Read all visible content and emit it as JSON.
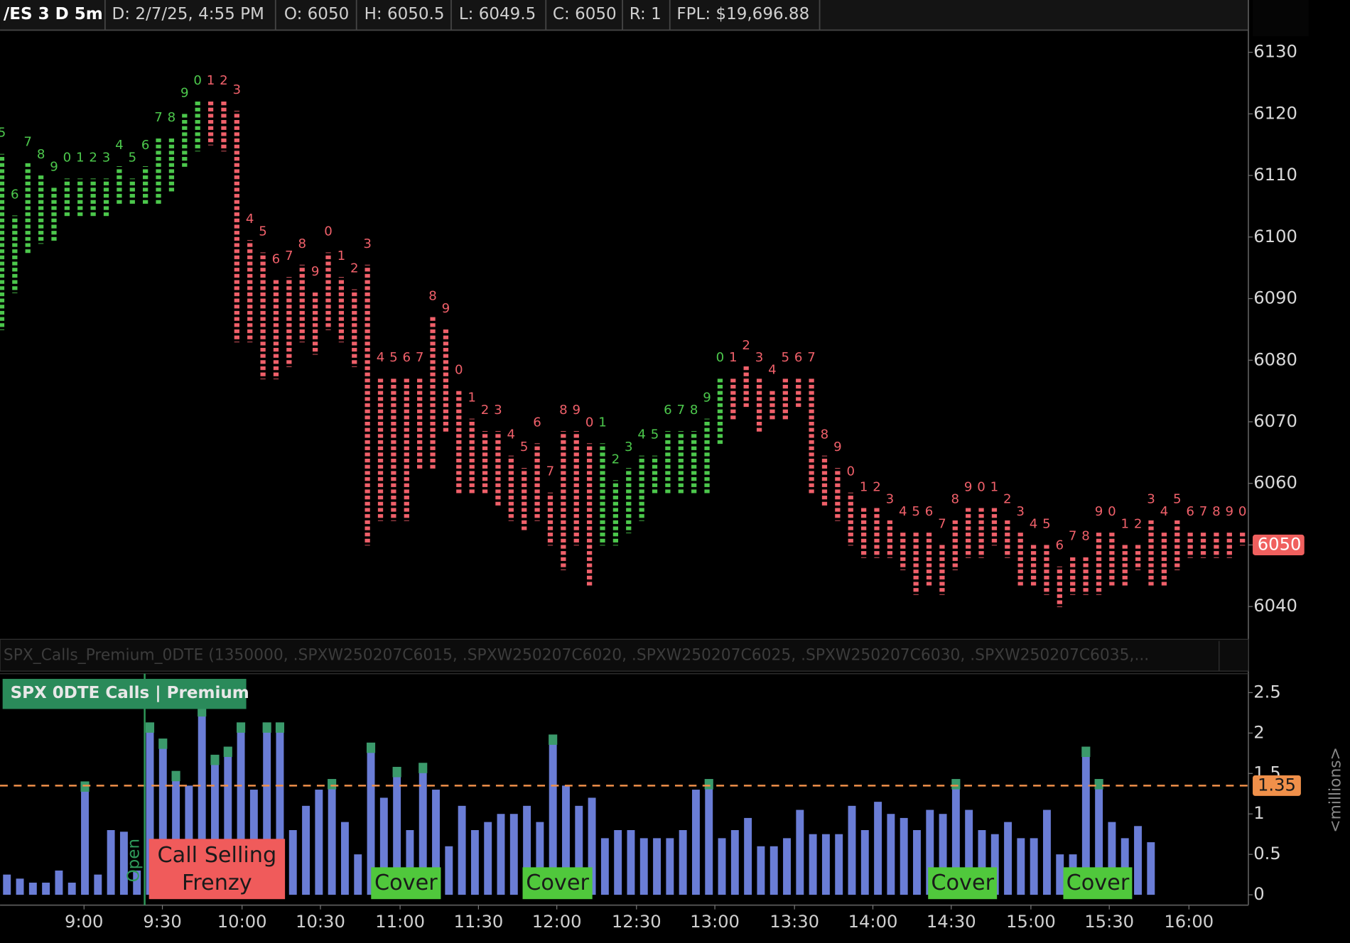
{
  "header": {
    "items": [
      "/ES 3 D 5m",
      "D: 2/7/25, 4:55 PM",
      "O: 6050",
      "H: 6050.5",
      "L: 6049.5",
      "C: 6050",
      "R: 1",
      "FPL: $19,696.88"
    ]
  },
  "chart_data": [
    {
      "type": "tpo",
      "labels": [
        "5",
        "6",
        "7",
        "8",
        "9",
        "0",
        "1",
        "2",
        "3",
        "4",
        "5",
        "6",
        "7",
        "8",
        "9",
        "0",
        "1",
        "2",
        "3",
        "4",
        "5",
        "6",
        "7",
        "8",
        "9",
        "0",
        "1",
        "2",
        "3",
        "4",
        "5",
        "6",
        "7",
        "8",
        "9",
        "0",
        "1",
        "2",
        "3",
        "4",
        "5",
        "6",
        "7",
        "8",
        "9",
        "0",
        "1",
        "2",
        "3",
        "4",
        "5",
        "6",
        "7",
        "8",
        "9",
        "0",
        "1",
        "2",
        "3",
        "4",
        "5",
        "6",
        "7",
        "8",
        "9",
        "0",
        "1",
        "2",
        "3",
        "4",
        "5",
        "6",
        "7",
        "8",
        "9",
        "0",
        "1",
        "2",
        "3",
        "4",
        "5",
        "6",
        "7",
        "8",
        "9",
        "0",
        "1",
        "2",
        "3",
        "4",
        "5",
        "6",
        "7",
        "8",
        "9",
        "0"
      ],
      "highs": [
        6113.5,
        6103.5,
        6112,
        6110,
        6108,
        6109.5,
        6109.5,
        6109.5,
        6109.5,
        6111.5,
        6109.5,
        6111.5,
        6116,
        6116,
        6120,
        6122,
        6122,
        6122,
        6120.5,
        6099.5,
        6097.5,
        6093,
        6093.5,
        6095.5,
        6091,
        6097.5,
        6093.5,
        6091.5,
        6095.5,
        6077,
        6077,
        6077,
        6077,
        6087,
        6085,
        6075,
        6070.5,
        6068.5,
        6068.5,
        6064.5,
        6062.5,
        6066.5,
        6058.5,
        6068.5,
        6068.5,
        6066.5,
        6066.5,
        6060.5,
        6062.5,
        6064.5,
        6064.5,
        6068.5,
        6068.5,
        6068.5,
        6070.5,
        6077,
        6077,
        6079,
        6077,
        6075,
        6077,
        6077,
        6077,
        6064.5,
        6062.5,
        6058.5,
        6056,
        6056,
        6054,
        6052,
        6052,
        6052,
        6050,
        6054,
        6056,
        6056,
        6056,
        6054,
        6052,
        6050,
        6050,
        6046.5,
        6048,
        6048,
        6052,
        6052,
        6050,
        6050,
        6054,
        6052,
        6054,
        6052,
        6052,
        6052,
        6052,
        6052
      ],
      "lows": [
        6085.5,
        6091.5,
        6098,
        6099.5,
        6100,
        6104,
        6104,
        6104,
        6104,
        6106,
        6106,
        6106,
        6106,
        6108,
        6112,
        6114.5,
        6115.5,
        6114.5,
        6083.5,
        6083.5,
        6077.5,
        6077.5,
        6079.5,
        6083.5,
        6081.5,
        6085.5,
        6083.5,
        6079.5,
        6050.5,
        6054.5,
        6054.5,
        6054.5,
        6063,
        6063,
        6069,
        6059,
        6059,
        6059,
        6057,
        6054.5,
        6053,
        6054.5,
        6050.5,
        6046.5,
        6050.5,
        6044,
        6050.5,
        6050.5,
        6052.5,
        6054.5,
        6059,
        6059,
        6059,
        6059,
        6059,
        6067,
        6071,
        6073,
        6069,
        6071,
        6071,
        6073,
        6059,
        6057,
        6054.5,
        6050.5,
        6048.5,
        6048.5,
        6048.5,
        6046.5,
        6042.5,
        6044,
        6042.5,
        6046.5,
        6048.5,
        6048.5,
        6050.5,
        6048.5,
        6044,
        6044,
        6042.5,
        6040.5,
        6042.5,
        6042.5,
        6042.5,
        6044,
        6044,
        6046.5,
        6044,
        6044,
        6046.5,
        6048.5,
        6048.5,
        6048.5,
        6048.5,
        6050.5
      ],
      "colors": [
        "#4cc84c",
        "#4cc84c",
        "#4cc84c",
        "#4cc84c",
        "#4cc84c",
        "#4cc84c",
        "#4cc84c",
        "#4cc84c",
        "#4cc84c",
        "#4cc84c",
        "#4cc84c",
        "#4cc84c",
        "#4cc84c",
        "#4cc84c",
        "#4cc84c",
        "#4cc84c",
        "#f0606a",
        "#f0606a",
        "#f0606a",
        "#f0606a",
        "#f0606a",
        "#f0606a",
        "#f0606a",
        "#f0606a",
        "#f0606a",
        "#f0606a",
        "#f0606a",
        "#f0606a",
        "#f0606a",
        "#f0606a",
        "#f0606a",
        "#f0606a",
        "#f0606a",
        "#f0606a",
        "#f0606a",
        "#f0606a",
        "#f0606a",
        "#f0606a",
        "#f0606a",
        "#f0606a",
        "#f0606a",
        "#f0606a",
        "#f0606a",
        "#f0606a",
        "#f0606a",
        "#f0606a",
        "#4cc84c",
        "#4cc84c",
        "#4cc84c",
        "#4cc84c",
        "#4cc84c",
        "#4cc84c",
        "#4cc84c",
        "#4cc84c",
        "#4cc84c",
        "#4cc84c",
        "#f0606a",
        "#f0606a",
        "#f0606a",
        "#f0606a",
        "#f0606a",
        "#f0606a",
        "#f0606a",
        "#f0606a",
        "#f0606a",
        "#f0606a",
        "#f0606a",
        "#f0606a",
        "#f0606a",
        "#f0606a",
        "#f0606a",
        "#f0606a",
        "#f0606a",
        "#f0606a",
        "#f0606a",
        "#f0606a",
        "#f0606a",
        "#f0606a",
        "#f0606a",
        "#f0606a",
        "#f0606a",
        "#f0606a",
        "#f0606a",
        "#f0606a",
        "#f0606a",
        "#f0606a",
        "#f0606a",
        "#f0606a",
        "#f0606a",
        "#f0606a",
        "#f0606a",
        "#f0606a",
        "#f0606a",
        "#f0606a",
        "#f0606a",
        "#f0606a"
      ],
      "ylim": [
        6035.8,
        6133.6
      ],
      "yticks": [
        6040,
        6050,
        6060,
        6070,
        6080,
        6090,
        6100,
        6110,
        6120,
        6130
      ],
      "last": 6050,
      "last_color": "#f0605e"
    },
    {
      "type": "bar",
      "title": "SPX 0DTE Calls | Premium",
      "study": "SPX_Calls_Premium_0DTE (1350000, .SPXW250207C6015, .SPXW250207C6020, .SPXW250207C6025, .SPXW250207C6030, .SPXW250207C6035,...",
      "y_unit": "<millions>",
      "color": "#6a7dd6",
      "highlight_color": "#3b9a6b",
      "values": [
        0.25,
        0.2,
        0.15,
        0.15,
        0.3,
        0.15,
        1.37,
        0.25,
        0.8,
        0.78,
        0.3,
        2.1,
        1.9,
        1.5,
        1.35,
        2.3,
        1.7,
        1.8,
        2.1,
        1.3,
        2.1,
        2.1,
        0.8,
        1.1,
        1.3,
        1.4,
        0.9,
        0.5,
        1.85,
        1.2,
        1.55,
        0.8,
        1.6,
        1.3,
        0.6,
        1.1,
        0.8,
        0.9,
        1.0,
        1.0,
        1.1,
        0.9,
        1.95,
        1.35,
        1.1,
        1.2,
        0.7,
        0.8,
        0.8,
        0.7,
        0.7,
        0.7,
        0.8,
        1.3,
        1.4,
        0.7,
        0.8,
        0.95,
        0.6,
        0.6,
        0.7,
        1.05,
        0.75,
        0.75,
        0.75,
        1.1,
        0.8,
        1.15,
        1.0,
        0.95,
        0.8,
        1.05,
        1.0,
        1.4,
        1.05,
        0.8,
        0.75,
        0.9,
        0.7,
        0.7,
        1.05,
        0.5,
        0.5,
        1.8,
        1.4,
        0.9,
        0.7,
        0.85,
        0.65
      ],
      "ylim": [
        -0.128,
        2.734
      ],
      "yticks": [
        0,
        0.5,
        1,
        1.5,
        2,
        2.5
      ],
      "reference": 1.35,
      "reference_color": "#f0904a",
      "marker_label": "Open",
      "marker_color": "#2f9a5a",
      "xticks": [
        {
          "value": 6.3,
          "label": "9:00"
        },
        {
          "value": 12.3,
          "label": "9:30"
        },
        {
          "value": 18.4,
          "label": "10:00"
        },
        {
          "value": 24.4,
          "label": "10:30"
        },
        {
          "value": 30.5,
          "label": "11:00"
        },
        {
          "value": 36.5,
          "label": "11:30"
        },
        {
          "value": 42.5,
          "label": "12:00"
        },
        {
          "value": 48.6,
          "label": "12:30"
        },
        {
          "value": 54.6,
          "label": "13:00"
        },
        {
          "value": 60.7,
          "label": "13:30"
        },
        {
          "value": 66.7,
          "label": "14:00"
        },
        {
          "value": 72.7,
          "label": "14:30"
        },
        {
          "value": 78.8,
          "label": "15:00"
        },
        {
          "value": 84.8,
          "label": "15:30"
        },
        {
          "value": 90.9,
          "label": "16:00"
        }
      ],
      "annotations": [
        {
          "text": "Call Selling Frenzy",
          "color": "#f05b5b"
        },
        {
          "text": "Cover",
          "color": "#50c83c"
        },
        {
          "text": "Cover",
          "color": "#50c83c"
        },
        {
          "text": "Cover",
          "color": "#50c83c"
        },
        {
          "text": "Cover",
          "color": "#50c83c"
        }
      ]
    }
  ]
}
